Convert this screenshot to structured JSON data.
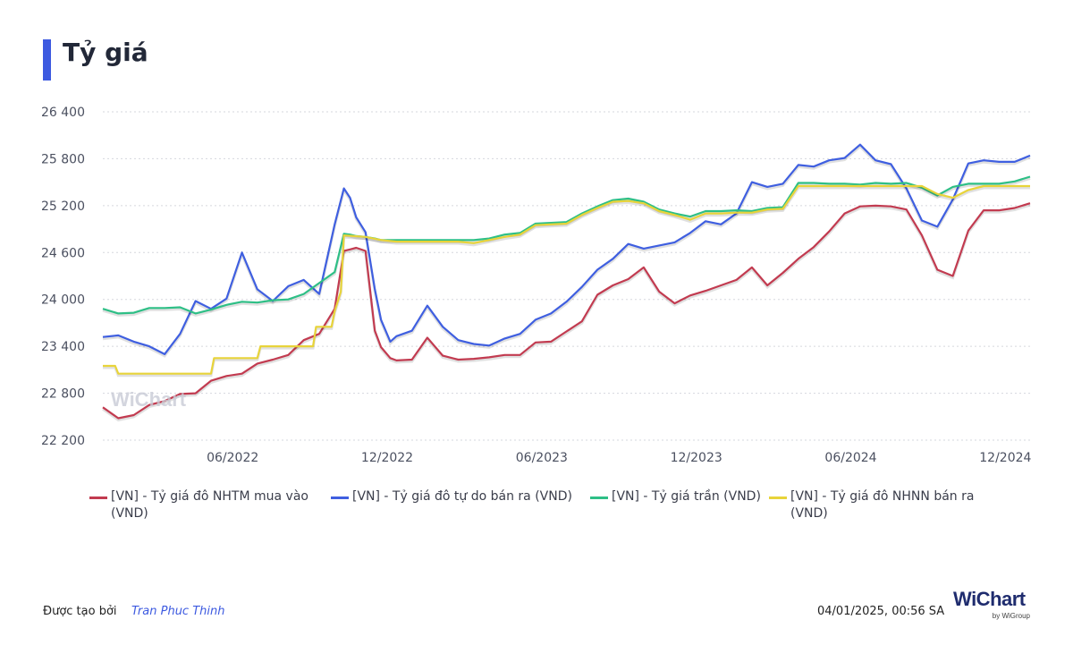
{
  "page": {
    "title": "Tỷ giá",
    "footer_label": "Được tạo bởi",
    "footer_author": "Tran Phuc Thinh",
    "footer_date": "04/01/2025, 00:56 SA",
    "brand_name": "WiChart",
    "brand_sub": "by WiGroup",
    "watermark": "WiChart"
  },
  "colors": {
    "accent": "#3d5ae0",
    "nhtm_buy": "#c23b50",
    "free_sell": "#3f5fe0",
    "ceiling": "#2ebf86",
    "sbv_sell": "#e8d43a",
    "grid": "#d5d7de",
    "axis_text": "#4b5060"
  },
  "chart_data": {
    "type": "line",
    "title": "Tỷ giá",
    "x_ticks": [
      "06/2022",
      "12/2022",
      "06/2023",
      "12/2023",
      "06/2024",
      "12/2024"
    ],
    "x_tick_values": [
      2022.42,
      2022.92,
      2023.42,
      2023.92,
      2024.42,
      2024.92
    ],
    "xlim": [
      2022.0,
      2025.0
    ],
    "y_ticks": [
      "22 200",
      "22 800",
      "23 400",
      "24 000",
      "24 600",
      "25 200",
      "25 800",
      "26 400"
    ],
    "y_tick_values": [
      22200,
      22800,
      23400,
      24000,
      24600,
      25200,
      25800,
      26400
    ],
    "ylim": [
      22200,
      26400
    ],
    "grid": "horizontal dotted",
    "legend_position": "bottom",
    "series": [
      {
        "name": "[VN] - Tỷ giá đô NHTM mua vào (VND)",
        "color": "#c23b50",
        "x": [
          2022.0,
          2022.05,
          2022.1,
          2022.15,
          2022.2,
          2022.25,
          2022.3,
          2022.35,
          2022.4,
          2022.45,
          2022.5,
          2022.55,
          2022.6,
          2022.65,
          2022.7,
          2022.75,
          2022.78,
          2022.8,
          2022.82,
          2022.85,
          2022.88,
          2022.9,
          2022.93,
          2022.95,
          2023.0,
          2023.05,
          2023.1,
          2023.15,
          2023.2,
          2023.25,
          2023.3,
          2023.35,
          2023.4,
          2023.45,
          2023.5,
          2023.55,
          2023.6,
          2023.65,
          2023.7,
          2023.75,
          2023.8,
          2023.85,
          2023.9,
          2023.95,
          2024.0,
          2024.05,
          2024.1,
          2024.15,
          2024.2,
          2024.25,
          2024.3,
          2024.35,
          2024.4,
          2024.45,
          2024.5,
          2024.55,
          2024.6,
          2024.65,
          2024.7,
          2024.75,
          2024.8,
          2024.85,
          2024.9,
          2024.95,
          2025.0
        ],
        "values": [
          22620,
          22480,
          22520,
          22650,
          22700,
          22790,
          22800,
          22960,
          23020,
          23050,
          23180,
          23230,
          23290,
          23480,
          23560,
          23880,
          24620,
          24640,
          24660,
          24620,
          23600,
          23390,
          23250,
          23220,
          23230,
          23510,
          23280,
          23230,
          23240,
          23260,
          23290,
          23290,
          23450,
          23460,
          23590,
          23720,
          24060,
          24180,
          24260,
          24410,
          24100,
          23950,
          24050,
          24110,
          24180,
          24250,
          24410,
          24180,
          24340,
          24520,
          24670,
          24870,
          25100,
          25190,
          25200,
          25190,
          25150,
          24820,
          24380,
          24300,
          24880,
          25140,
          25140,
          25170,
          25230
        ]
      },
      {
        "name": "[VN] - Tỷ giá đô tự do bán ra (VND)",
        "color": "#3f5fe0",
        "x": [
          2022.0,
          2022.05,
          2022.1,
          2022.15,
          2022.2,
          2022.25,
          2022.3,
          2022.35,
          2022.4,
          2022.45,
          2022.5,
          2022.55,
          2022.6,
          2022.65,
          2022.7,
          2022.75,
          2022.78,
          2022.8,
          2022.82,
          2022.85,
          2022.88,
          2022.9,
          2022.93,
          2022.95,
          2023.0,
          2023.05,
          2023.1,
          2023.15,
          2023.2,
          2023.25,
          2023.3,
          2023.35,
          2023.4,
          2023.45,
          2023.5,
          2023.55,
          2023.6,
          2023.65,
          2023.7,
          2023.75,
          2023.8,
          2023.85,
          2023.9,
          2023.95,
          2024.0,
          2024.05,
          2024.1,
          2024.15,
          2024.2,
          2024.25,
          2024.3,
          2024.35,
          2024.4,
          2024.45,
          2024.5,
          2024.55,
          2024.6,
          2024.65,
          2024.7,
          2024.75,
          2024.8,
          2024.85,
          2024.9,
          2024.95,
          2025.0
        ],
        "values": [
          23520,
          23540,
          23460,
          23400,
          23300,
          23560,
          23980,
          23880,
          24010,
          24600,
          24130,
          23980,
          24170,
          24250,
          24070,
          24960,
          25420,
          25300,
          25050,
          24860,
          24130,
          23740,
          23460,
          23530,
          23600,
          23920,
          23650,
          23480,
          23430,
          23410,
          23500,
          23560,
          23740,
          23820,
          23970,
          24160,
          24380,
          24520,
          24710,
          24650,
          24690,
          24730,
          24850,
          25000,
          24960,
          25100,
          25500,
          25440,
          25480,
          25720,
          25700,
          25780,
          25810,
          25980,
          25780,
          25730,
          25420,
          25010,
          24930,
          25280,
          25740,
          25780,
          25760,
          25760,
          25840
        ]
      },
      {
        "name": "[VN] - Tỷ giá trần (VND)",
        "color": "#2ebf86",
        "x": [
          2022.0,
          2022.05,
          2022.1,
          2022.15,
          2022.2,
          2022.25,
          2022.3,
          2022.35,
          2022.4,
          2022.45,
          2022.5,
          2022.55,
          2022.6,
          2022.65,
          2022.7,
          2022.75,
          2022.78,
          2022.8,
          2022.82,
          2022.85,
          2022.88,
          2022.9,
          2022.93,
          2022.95,
          2023.0,
          2023.05,
          2023.1,
          2023.15,
          2023.2,
          2023.25,
          2023.3,
          2023.35,
          2023.4,
          2023.45,
          2023.5,
          2023.55,
          2023.6,
          2023.65,
          2023.7,
          2023.75,
          2023.8,
          2023.85,
          2023.9,
          2023.95,
          2024.0,
          2024.05,
          2024.1,
          2024.15,
          2024.2,
          2024.25,
          2024.3,
          2024.35,
          2024.4,
          2024.45,
          2024.5,
          2024.55,
          2024.6,
          2024.65,
          2024.7,
          2024.75,
          2024.8,
          2024.85,
          2024.9,
          2024.95,
          2025.0
        ],
        "values": [
          23880,
          23820,
          23830,
          23890,
          23890,
          23900,
          23820,
          23870,
          23930,
          23970,
          23960,
          23990,
          24000,
          24070,
          24210,
          24350,
          24840,
          24830,
          24810,
          24800,
          24780,
          24760,
          24760,
          24760,
          24760,
          24760,
          24760,
          24760,
          24760,
          24780,
          24830,
          24850,
          24970,
          24980,
          24990,
          25100,
          25190,
          25270,
          25290,
          25250,
          25150,
          25100,
          25060,
          25130,
          25130,
          25140,
          25130,
          25170,
          25180,
          25490,
          25490,
          25480,
          25480,
          25470,
          25490,
          25480,
          25490,
          25430,
          25330,
          25440,
          25480,
          25480,
          25480,
          25510,
          25570
        ]
      },
      {
        "name": "[VN] - Tỷ giá đô NHNN bán ra (VND)",
        "color": "#e8d43a",
        "x": [
          2022.0,
          2022.04,
          2022.05,
          2022.2,
          2022.35,
          2022.36,
          2022.5,
          2022.51,
          2022.68,
          2022.69,
          2022.74,
          2022.75,
          2022.77,
          2022.78,
          2022.85,
          2022.9,
          2022.95,
          2023.0,
          2023.05,
          2023.1,
          2023.15,
          2023.2,
          2023.25,
          2023.3,
          2023.35,
          2023.4,
          2023.45,
          2023.5,
          2023.55,
          2023.6,
          2023.65,
          2023.7,
          2023.75,
          2023.8,
          2023.85,
          2023.9,
          2023.95,
          2024.0,
          2024.05,
          2024.1,
          2024.15,
          2024.2,
          2024.25,
          2024.3,
          2024.35,
          2024.4,
          2024.45,
          2024.5,
          2024.55,
          2024.6,
          2024.65,
          2024.7,
          2024.75,
          2024.8,
          2024.85,
          2024.9,
          2024.95,
          2025.0
        ],
        "values": [
          23150,
          23150,
          23050,
          23050,
          23050,
          23250,
          23250,
          23400,
          23400,
          23650,
          23650,
          23850,
          24100,
          24820,
          24800,
          24760,
          24740,
          24740,
          24740,
          24740,
          24740,
          24720,
          24760,
          24800,
          24830,
          24950,
          24960,
          24970,
          25080,
          25170,
          25250,
          25260,
          25230,
          25130,
          25080,
          25020,
          25100,
          25100,
          25110,
          25110,
          25150,
          25160,
          25450,
          25450,
          25450,
          25450,
          25450,
          25450,
          25450,
          25450,
          25450,
          25350,
          25300,
          25400,
          25450,
          25450,
          25450,
          25450
        ]
      }
    ]
  }
}
